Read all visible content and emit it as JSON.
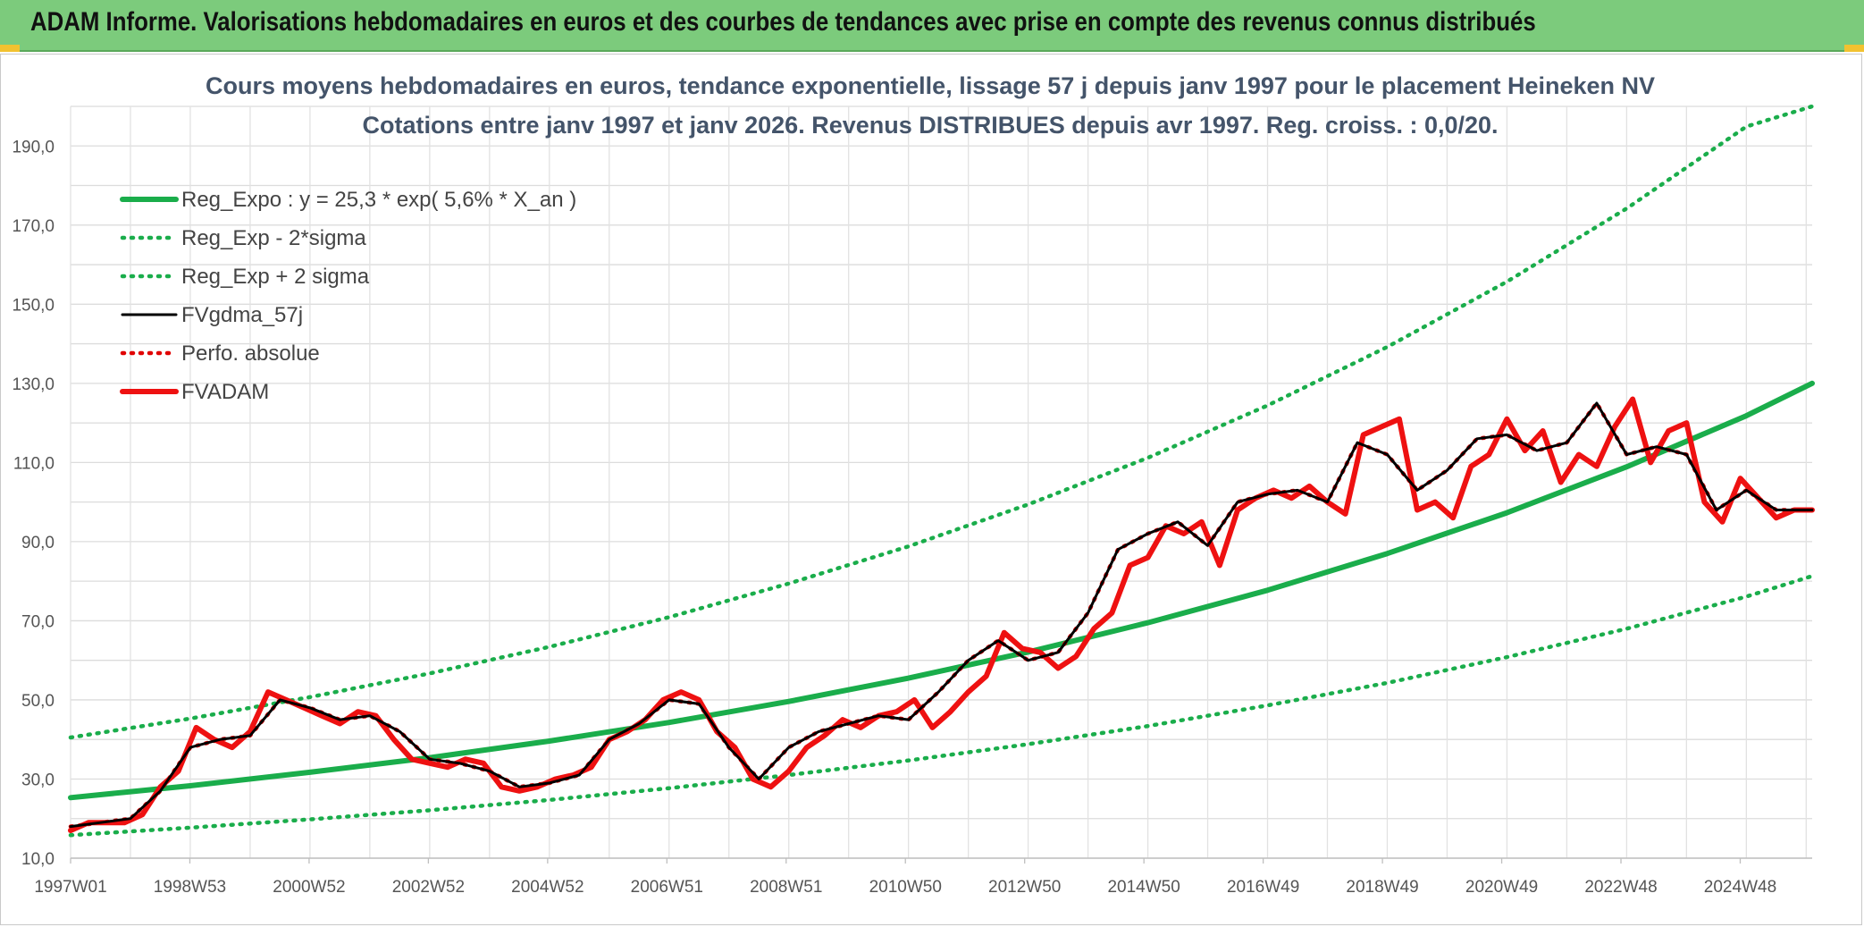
{
  "banner": {
    "title": "ADAM Informe. Valorisations hebdomadaires en euros et des courbes de tendances avec prise en compte des revenus connus distribués"
  },
  "chart_data": {
    "type": "line",
    "title": "Cours moyens hebdomadaires en euros, tendance exponentielle, lissage 57 j depuis janv 1997 pour le placement Heineken NV",
    "subtitle": "Cotations entre janv 1997 et janv 2026. Revenus DISTRIBUES depuis avr 1997. Reg. croiss. : 0,0/20.",
    "xlabel": "",
    "ylabel": "",
    "x_tick_labels": [
      "1997W01",
      "1998W53",
      "2000W52",
      "2002W52",
      "2004W52",
      "2006W51",
      "2008W51",
      "2010W50",
      "2012W50",
      "2014W50",
      "2016W49",
      "2018W49",
      "2020W49",
      "2022W48",
      "2024W48"
    ],
    "y_tick_labels": [
      "10,0",
      "30,0",
      "50,0",
      "70,0",
      "90,0",
      "110,0",
      "130,0",
      "150,0",
      "170,0",
      "190,0"
    ],
    "xlim": [
      1997.0,
      2026.1
    ],
    "ylim": [
      10,
      200
    ],
    "grid": true,
    "legend_position": "top-left",
    "colors": {
      "trend": "#1aad4b",
      "band": "#1aad4b",
      "smoothed": "#000000",
      "absolute": "#e00000",
      "price": "#ee1111"
    },
    "series": [
      {
        "name": "Reg_Expo : y = 25,3 * exp( 5,6% *  X_an )",
        "style": "solid-thick",
        "color": "#1aad4b",
        "x": [
          1997.0,
          1999.0,
          2001.0,
          2003.0,
          2005.0,
          2007.0,
          2009.0,
          2011.0,
          2013.0,
          2015.0,
          2017.0,
          2019.0,
          2021.0,
          2023.0,
          2025.0,
          2026.1
        ],
        "y": [
          25.3,
          28.3,
          31.7,
          35.4,
          39.6,
          44.3,
          49.6,
          55.5,
          62.1,
          69.5,
          77.7,
          87.0,
          97.3,
          108.9,
          121.8,
          130.0
        ]
      },
      {
        "name": "Reg_Exp - 2*sigma",
        "style": "dotted",
        "color": "#1aad4b",
        "x": [
          1997.0,
          1999.0,
          2001.0,
          2003.0,
          2005.0,
          2007.0,
          2009.0,
          2011.0,
          2013.0,
          2015.0,
          2017.0,
          2019.0,
          2021.0,
          2023.0,
          2025.0,
          2026.1
        ],
        "y": [
          15.8,
          17.7,
          19.8,
          22.1,
          24.7,
          27.7,
          31.0,
          34.7,
          38.8,
          43.4,
          48.6,
          54.3,
          60.8,
          68.0,
          76.1,
          81.3
        ]
      },
      {
        "name": "Reg_Exp + 2 sigma",
        "style": "dotted",
        "color": "#1aad4b",
        "x": [
          1997.0,
          1999.0,
          2001.0,
          2003.0,
          2005.0,
          2007.0,
          2009.0,
          2011.0,
          2013.0,
          2015.0,
          2017.0,
          2019.0,
          2021.0,
          2023.0,
          2025.0,
          2026.1
        ],
        "y": [
          40.5,
          45.3,
          50.7,
          56.7,
          63.4,
          70.9,
          79.4,
          88.8,
          99.4,
          111.2,
          124.4,
          139.2,
          155.7,
          174.2,
          194.9,
          200.0
        ]
      },
      {
        "name": "FVgdma_57j",
        "style": "solid",
        "color": "#000000",
        "x": [
          1997.0,
          1997.5,
          1998.0,
          1998.5,
          1999.0,
          1999.5,
          2000.0,
          2000.5,
          2001.0,
          2001.5,
          2002.0,
          2002.5,
          2003.0,
          2003.5,
          2004.0,
          2004.5,
          2005.0,
          2005.5,
          2006.0,
          2006.5,
          2007.0,
          2007.5,
          2008.0,
          2008.5,
          2009.0,
          2009.5,
          2010.0,
          2010.5,
          2011.0,
          2011.5,
          2012.0,
          2012.5,
          2013.0,
          2013.5,
          2014.0,
          2014.5,
          2015.0,
          2015.5,
          2016.0,
          2016.5,
          2017.0,
          2017.5,
          2018.0,
          2018.5,
          2019.0,
          2019.5,
          2020.0,
          2020.5,
          2021.0,
          2021.5,
          2022.0,
          2022.5,
          2023.0,
          2023.5,
          2024.0,
          2024.5,
          2025.0,
          2025.5,
          2026.1
        ],
        "y": [
          18,
          19,
          20,
          27,
          38,
          40,
          41,
          50,
          48,
          45,
          46,
          42,
          35,
          34,
          32,
          28,
          29,
          31,
          40,
          44,
          50,
          49,
          38,
          30,
          38,
          42,
          44,
          46,
          45,
          52,
          60,
          65,
          60,
          62,
          72,
          88,
          92,
          95,
          89,
          100,
          102,
          103,
          100,
          115,
          112,
          103,
          108,
          116,
          117,
          113,
          115,
          125,
          112,
          114,
          112,
          98,
          103,
          98,
          98
        ]
      },
      {
        "name": "Perfo. absolue",
        "style": "dotted",
        "color": "#e00000",
        "x": [
          1997.0,
          1997.5,
          1998.0,
          1998.5,
          1999.0,
          1999.5,
          2000.0,
          2000.5,
          2001.0,
          2001.5,
          2002.0,
          2002.5,
          2003.0,
          2003.5,
          2004.0,
          2004.5,
          2005.0,
          2005.5,
          2006.0,
          2006.5,
          2007.0,
          2007.5,
          2008.0,
          2008.5,
          2009.0,
          2009.5,
          2010.0,
          2010.5,
          2011.0,
          2011.5,
          2012.0,
          2012.5,
          2013.0,
          2013.5,
          2014.0,
          2014.5,
          2015.0,
          2015.5,
          2016.0,
          2016.5,
          2017.0,
          2017.5,
          2018.0,
          2018.5,
          2019.0,
          2019.5,
          2020.0,
          2020.5,
          2021.0,
          2021.5,
          2022.0,
          2022.5,
          2023.0,
          2023.5,
          2024.0,
          2024.5,
          2025.0,
          2025.5,
          2026.1
        ],
        "y": [
          18,
          19,
          20,
          27,
          38,
          40,
          41,
          50,
          48,
          45,
          46,
          42,
          35,
          34,
          32,
          28,
          29,
          31,
          40,
          44,
          50,
          49,
          38,
          30,
          38,
          42,
          44,
          46,
          45,
          52,
          60,
          65,
          60,
          62,
          72,
          88,
          92,
          95,
          89,
          100,
          102,
          103,
          100,
          115,
          112,
          103,
          108,
          116,
          117,
          113,
          115,
          125,
          112,
          114,
          112,
          98,
          103,
          98,
          98
        ]
      },
      {
        "name": "FVADAM",
        "style": "solid-thick",
        "color": "#ee1111",
        "x": [
          1997.0,
          1997.3,
          1997.6,
          1997.9,
          1998.2,
          1998.5,
          1998.8,
          1999.1,
          1999.4,
          1999.7,
          2000.0,
          2000.3,
          2000.6,
          2000.9,
          2001.2,
          2001.5,
          2001.8,
          2002.1,
          2002.4,
          2002.7,
          2003.0,
          2003.3,
          2003.6,
          2003.9,
          2004.2,
          2004.5,
          2004.8,
          2005.1,
          2005.4,
          2005.7,
          2006.0,
          2006.3,
          2006.6,
          2006.9,
          2007.2,
          2007.5,
          2007.8,
          2008.1,
          2008.4,
          2008.7,
          2009.0,
          2009.3,
          2009.6,
          2009.9,
          2010.2,
          2010.5,
          2010.8,
          2011.1,
          2011.4,
          2011.7,
          2012.0,
          2012.3,
          2012.6,
          2012.9,
          2013.2,
          2013.5,
          2013.8,
          2014.1,
          2014.4,
          2014.7,
          2015.0,
          2015.3,
          2015.6,
          2015.9,
          2016.2,
          2016.5,
          2016.8,
          2017.1,
          2017.4,
          2017.7,
          2018.0,
          2018.3,
          2018.6,
          2018.9,
          2019.2,
          2019.5,
          2019.8,
          2020.1,
          2020.4,
          2020.7,
          2021.0,
          2021.3,
          2021.6,
          2021.9,
          2022.2,
          2022.5,
          2022.8,
          2023.1,
          2023.4,
          2023.7,
          2024.0,
          2024.3,
          2024.6,
          2024.9,
          2025.2,
          2025.5,
          2025.8,
          2026.1
        ],
        "y": [
          17,
          19,
          19,
          19,
          21,
          28,
          32,
          43,
          40,
          38,
          42,
          52,
          50,
          48,
          46,
          44,
          47,
          46,
          40,
          35,
          34,
          33,
          35,
          34,
          28,
          27,
          28,
          30,
          31,
          33,
          40,
          42,
          45,
          50,
          52,
          50,
          42,
          38,
          30,
          28,
          32,
          38,
          41,
          45,
          43,
          46,
          47,
          50,
          43,
          47,
          52,
          56,
          67,
          63,
          62,
          58,
          61,
          68,
          72,
          84,
          86,
          94,
          92,
          95,
          84,
          98,
          101,
          103,
          101,
          104,
          100,
          97,
          117,
          119,
          121,
          98,
          100,
          96,
          109,
          112,
          121,
          113,
          118,
          105,
          112,
          109,
          119,
          126,
          110,
          118,
          120,
          100,
          95,
          106,
          101,
          96,
          98,
          98
        ]
      }
    ]
  }
}
